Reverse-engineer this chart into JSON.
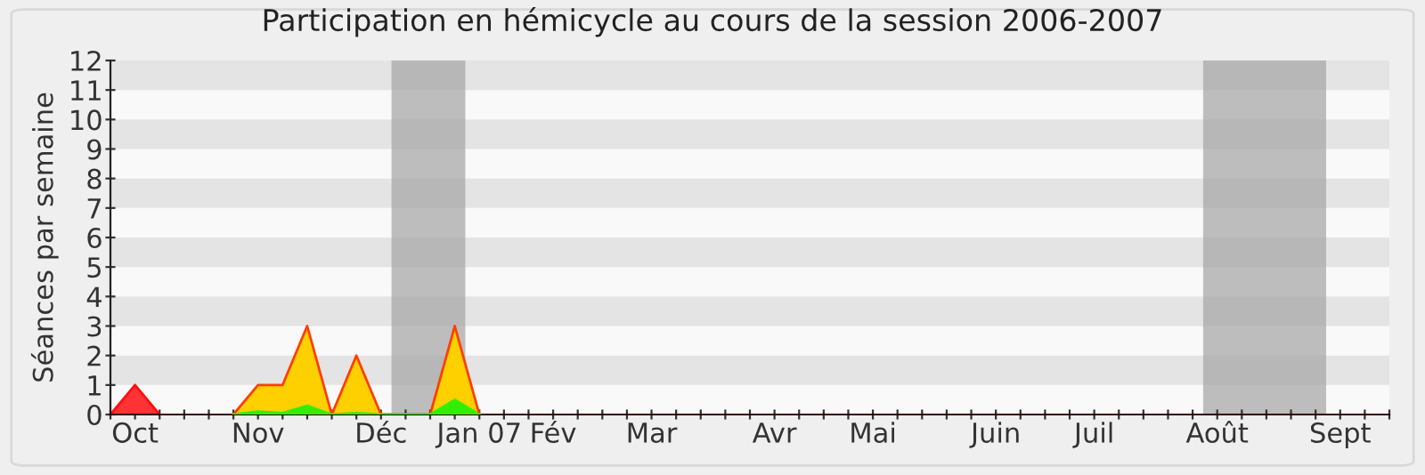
{
  "chart_data": {
    "type": "area",
    "title": "Participation en hémicycle au cours de la session 2006-2007",
    "ylabel": "Séances par semaine",
    "series": [
      {
        "color": "#ff3333",
        "x": [
          "2006-09-28",
          "2006-10-05",
          "2006-10-12"
        ],
        "values": [
          0,
          1,
          0
        ]
      },
      {
        "color": "#ffd000",
        "x": [
          "2006-11-02",
          "2006-11-09",
          "2006-11-16",
          "2006-11-23",
          "2006-11-30",
          "2006-12-07",
          "2006-12-14",
          "2006-12-21",
          "2006-12-28",
          "2007-01-04",
          "2007-01-11"
        ],
        "values": [
          0,
          1,
          1,
          3,
          0,
          2,
          0,
          0,
          0,
          3,
          0
        ]
      },
      {
        "color": "#33ee00",
        "x": [
          "2006-11-02",
          "2006-11-09",
          "2006-11-16",
          "2006-11-23",
          "2006-11-30",
          "2006-12-07",
          "2006-12-14",
          "2006-12-28",
          "2007-01-04",
          "2007-01-11"
        ],
        "values": [
          0,
          0.1,
          0.05,
          0.3,
          0,
          0.05,
          0,
          0,
          0.5,
          0
        ]
      }
    ],
    "xlim": [
      "2006-09-28",
      "2007-09-27"
    ],
    "xticks": [
      {
        "value": "2006-09-28",
        "label": null
      },
      {
        "value": "2006-10-05",
        "label": "Oct"
      },
      {
        "value": "2006-10-12",
        "label": null
      },
      {
        "value": "2006-10-19",
        "label": null
      },
      {
        "value": "2006-10-26",
        "label": null
      },
      {
        "value": "2006-11-02",
        "label": null
      },
      {
        "value": "2006-11-09",
        "label": "Nov"
      },
      {
        "value": "2006-11-16",
        "label": null
      },
      {
        "value": "2006-11-23",
        "label": null
      },
      {
        "value": "2006-11-30",
        "label": null
      },
      {
        "value": "2006-12-07",
        "label": null
      },
      {
        "value": "2006-12-14",
        "label": "Déc"
      },
      {
        "value": "2006-12-21",
        "label": null
      },
      {
        "value": "2006-12-28",
        "label": null
      },
      {
        "value": "2007-01-04",
        "label": null
      },
      {
        "value": "2007-01-11",
        "label": "Jan 07"
      },
      {
        "value": "2007-01-18",
        "label": null
      },
      {
        "value": "2007-01-25",
        "label": null
      },
      {
        "value": "2007-02-01",
        "label": "Fév"
      },
      {
        "value": "2007-02-08",
        "label": null
      },
      {
        "value": "2007-02-15",
        "label": null
      },
      {
        "value": "2007-02-22",
        "label": null
      },
      {
        "value": "2007-03-01",
        "label": "Mar"
      },
      {
        "value": "2007-03-08",
        "label": null
      },
      {
        "value": "2007-03-15",
        "label": null
      },
      {
        "value": "2007-03-22",
        "label": null
      },
      {
        "value": "2007-03-29",
        "label": null
      },
      {
        "value": "2007-04-05",
        "label": "Avr"
      },
      {
        "value": "2007-04-12",
        "label": null
      },
      {
        "value": "2007-04-19",
        "label": null
      },
      {
        "value": "2007-04-26",
        "label": null
      },
      {
        "value": "2007-05-03",
        "label": "Mai"
      },
      {
        "value": "2007-05-10",
        "label": null
      },
      {
        "value": "2007-05-17",
        "label": null
      },
      {
        "value": "2007-05-24",
        "label": null
      },
      {
        "value": "2007-05-31",
        "label": null
      },
      {
        "value": "2007-06-07",
        "label": "Juin"
      },
      {
        "value": "2007-06-14",
        "label": null
      },
      {
        "value": "2007-06-21",
        "label": null
      },
      {
        "value": "2007-06-28",
        "label": null
      },
      {
        "value": "2007-07-05",
        "label": "Juil"
      },
      {
        "value": "2007-07-12",
        "label": null
      },
      {
        "value": "2007-07-19",
        "label": null
      },
      {
        "value": "2007-07-26",
        "label": null
      },
      {
        "value": "2007-08-02",
        "label": null
      },
      {
        "value": "2007-08-09",
        "label": "Août"
      },
      {
        "value": "2007-08-16",
        "label": null
      },
      {
        "value": "2007-08-23",
        "label": null
      },
      {
        "value": "2007-08-30",
        "label": null
      },
      {
        "value": "2007-09-06",
        "label": null
      },
      {
        "value": "2007-09-13",
        "label": "Sept"
      },
      {
        "value": "2007-09-20",
        "label": null
      },
      {
        "value": "2007-09-27",
        "label": null
      }
    ],
    "ylim": [
      0,
      12
    ],
    "yticks": [
      0,
      1,
      2,
      3,
      4,
      5,
      6,
      7,
      8,
      9,
      10,
      11,
      12
    ],
    "bands": [
      {
        "axis": "x",
        "from": "2006-12-17",
        "to": "2007-01-07",
        "color": "#a8a8a8"
      },
      {
        "axis": "x",
        "from": "2007-08-05",
        "to": "2007-09-09",
        "color": "#a8a8a8"
      }
    ]
  }
}
